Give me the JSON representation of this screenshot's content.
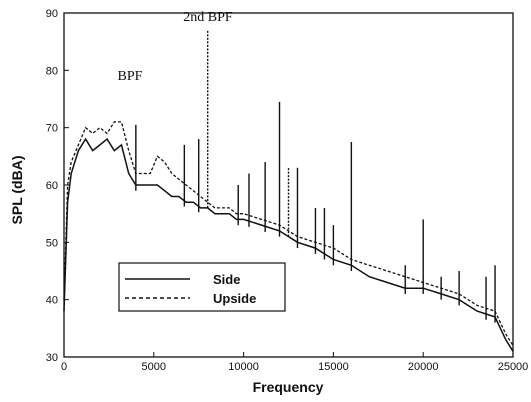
{
  "chart_data": {
    "type": "line",
    "xlabel": "Frequency",
    "ylabel": "SPL (dBA)",
    "xlim": [
      0,
      25000
    ],
    "ylim": [
      30,
      90
    ],
    "xticks": [
      0,
      5000,
      10000,
      15000,
      20000,
      25000
    ],
    "yticks": [
      30,
      40,
      50,
      60,
      70,
      80,
      90
    ],
    "grid": false,
    "legend_position": "lower-left",
    "annotations": [
      {
        "text": "BPF",
        "x": 3400,
        "y": 79
      },
      {
        "text": "2nd BPF",
        "x": 8000,
        "y": 88.5
      }
    ],
    "series": [
      {
        "name": "Side",
        "style": "solid",
        "color": "#111111",
        "x": [
          0,
          200,
          400,
          800,
          1200,
          1600,
          2000,
          2400,
          2800,
          3200,
          3600,
          4000,
          4400,
          4800,
          5200,
          5600,
          6000,
          6400,
          6800,
          7200,
          7600,
          8000,
          8400,
          8800,
          9200,
          9600,
          10000,
          11000,
          12000,
          13000,
          14000,
          15000,
          16000,
          17000,
          18000,
          19000,
          20000,
          21000,
          22000,
          23000,
          24000,
          24600,
          25000
        ],
        "y": [
          38,
          57,
          62,
          66,
          68,
          66,
          67,
          68,
          66,
          67,
          62,
          60,
          60,
          60,
          60,
          59,
          58,
          58,
          57,
          57,
          56,
          56,
          55,
          55,
          55,
          54,
          54,
          53,
          52,
          50,
          49,
          47,
          46,
          44,
          43,
          42,
          42,
          41,
          40,
          38,
          37,
          33,
          31
        ]
      },
      {
        "name": "Upside",
        "style": "dashed",
        "color": "#111111",
        "x": [
          0,
          200,
          400,
          800,
          1200,
          1600,
          2000,
          2400,
          2800,
          3200,
          3600,
          4000,
          4400,
          4800,
          5200,
          5600,
          6000,
          6400,
          6800,
          7200,
          7600,
          8000,
          8400,
          8800,
          9200,
          9600,
          10000,
          11000,
          12000,
          13000,
          14000,
          15000,
          16000,
          17000,
          18000,
          19000,
          20000,
          21000,
          22000,
          23000,
          24000,
          24600,
          25000
        ],
        "y": [
          40,
          60,
          64,
          67,
          70,
          69,
          70,
          69,
          71,
          71,
          66,
          62,
          62,
          62,
          65,
          64,
          62,
          61,
          60,
          59,
          58,
          57,
          56,
          56,
          56,
          55,
          55,
          54,
          53,
          51,
          50,
          49,
          47,
          46,
          45,
          44,
          43,
          42,
          41,
          39,
          38,
          34,
          32
        ]
      }
    ],
    "peaks": [
      {
        "x": 4000,
        "y": 70.5,
        "series": "Side"
      },
      {
        "x": 6700,
        "y": 67,
        "series": "Side"
      },
      {
        "x": 7500,
        "y": 68,
        "series": "Side"
      },
      {
        "x": 8000,
        "y": 87,
        "series": "Upside"
      },
      {
        "x": 9700,
        "y": 60,
        "series": "Side"
      },
      {
        "x": 10300,
        "y": 62,
        "series": "Side"
      },
      {
        "x": 11200,
        "y": 64,
        "series": "Side"
      },
      {
        "x": 12000,
        "y": 74.5,
        "series": "Side"
      },
      {
        "x": 12500,
        "y": 63,
        "series": "Upside"
      },
      {
        "x": 13000,
        "y": 63,
        "series": "Side"
      },
      {
        "x": 14000,
        "y": 56,
        "series": "Side"
      },
      {
        "x": 14500,
        "y": 56,
        "series": "Side"
      },
      {
        "x": 15000,
        "y": 53,
        "series": "Side"
      },
      {
        "x": 16000,
        "y": 67.5,
        "series": "Side"
      },
      {
        "x": 19000,
        "y": 46,
        "series": "Side"
      },
      {
        "x": 20000,
        "y": 54,
        "series": "Side"
      },
      {
        "x": 21000,
        "y": 44,
        "series": "Side"
      },
      {
        "x": 22000,
        "y": 45,
        "series": "Side"
      },
      {
        "x": 23500,
        "y": 44,
        "series": "Side"
      },
      {
        "x": 24000,
        "y": 46,
        "series": "Side"
      }
    ]
  }
}
